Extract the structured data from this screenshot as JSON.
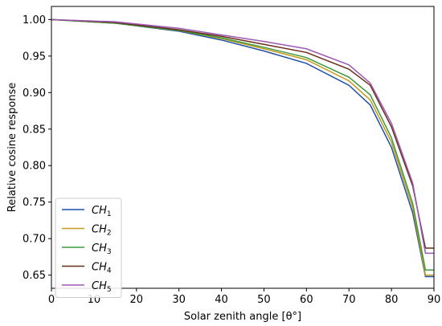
{
  "chart_data": {
    "type": "line",
    "xlabel": "Solar zenith angle [θ°]",
    "ylabel": "Relative cosine response",
    "xlim": [
      0,
      90
    ],
    "ylim": [
      0.632,
      1.018
    ],
    "xticks": [
      "0",
      "10",
      "20",
      "30",
      "40",
      "50",
      "60",
      "70",
      "80",
      "90"
    ],
    "yticks": [
      "0.65",
      "0.70",
      "0.75",
      "0.80",
      "0.85",
      "0.90",
      "0.95",
      "1.00"
    ],
    "grid": false,
    "legend_position": "bottom-left",
    "x": [
      0,
      15,
      30,
      40,
      50,
      60,
      70,
      75,
      80,
      85,
      88,
      90
    ],
    "series": [
      {
        "name": "CH",
        "sub": "1",
        "color": "#1f4fa8",
        "values": [
          1.0,
          0.995,
          0.984,
          0.972,
          0.957,
          0.94,
          0.91,
          0.883,
          0.825,
          0.735,
          0.648,
          0.648
        ]
      },
      {
        "name": "CH",
        "sub": "2",
        "color": "#c49a1c",
        "values": [
          1.0,
          0.995,
          0.985,
          0.974,
          0.96,
          0.945,
          0.916,
          0.89,
          0.832,
          0.742,
          0.65,
          0.65
        ]
      },
      {
        "name": "CH",
        "sub": "3",
        "color": "#3e9a3e",
        "values": [
          1.0,
          0.995,
          0.985,
          0.975,
          0.962,
          0.948,
          0.921,
          0.897,
          0.838,
          0.748,
          0.657,
          0.657
        ]
      },
      {
        "name": "CH",
        "sub": "4",
        "color": "#6b2c16",
        "values": [
          1.0,
          0.996,
          0.986,
          0.977,
          0.966,
          0.955,
          0.932,
          0.91,
          0.853,
          0.772,
          0.687,
          0.687
        ]
      },
      {
        "name": "CH",
        "sub": "5",
        "color": "#9b59b6",
        "values": [
          1.0,
          0.997,
          0.988,
          0.979,
          0.97,
          0.96,
          0.938,
          0.913,
          0.858,
          0.776,
          0.68,
          0.68
        ]
      }
    ]
  }
}
